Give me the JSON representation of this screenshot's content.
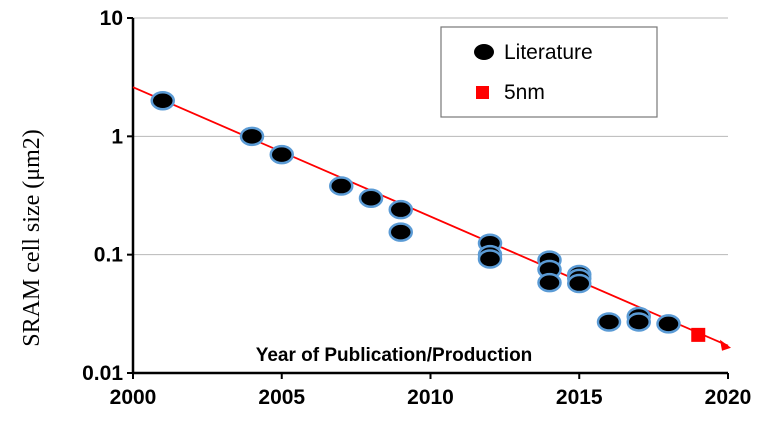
{
  "chart_data": {
    "type": "scatter",
    "xlabel": "Year of Publication/Production",
    "ylabel": "SRAM cell size  (μm2)",
    "xlim": [
      2000,
      2020
    ],
    "ylim": [
      0.01,
      10
    ],
    "yscale": "log",
    "x_ticks": [
      "2000",
      "2005",
      "2010",
      "2015",
      "2020"
    ],
    "y_ticks": [
      "0.01",
      "0.1",
      "1",
      "10"
    ],
    "grid": "horizontal",
    "legend_position": "top-right",
    "series": [
      {
        "name": "Literature",
        "marker": "ellipse",
        "color": "#000000",
        "edge_color": "#5b9bd5",
        "x": [
          2001,
          2004,
          2005,
          2007,
          2008,
          2009,
          2009,
          2012,
          2012,
          2012,
          2014,
          2014,
          2014,
          2015,
          2015,
          2015,
          2016,
          2017,
          2017,
          2018
        ],
        "y": [
          2.0,
          1.0,
          0.7,
          0.38,
          0.3,
          0.24,
          0.155,
          0.125,
          0.1,
          0.092,
          0.09,
          0.075,
          0.058,
          0.068,
          0.063,
          0.057,
          0.027,
          0.03,
          0.027,
          0.026
        ]
      },
      {
        "name": "5nm",
        "marker": "square",
        "color": "#ff0000",
        "x": [
          2019
        ],
        "y": [
          0.021
        ]
      }
    ],
    "trend_line": {
      "color": "#ff0000",
      "x": [
        2000,
        2020
      ],
      "y": [
        2.6,
        0.017
      ]
    }
  }
}
